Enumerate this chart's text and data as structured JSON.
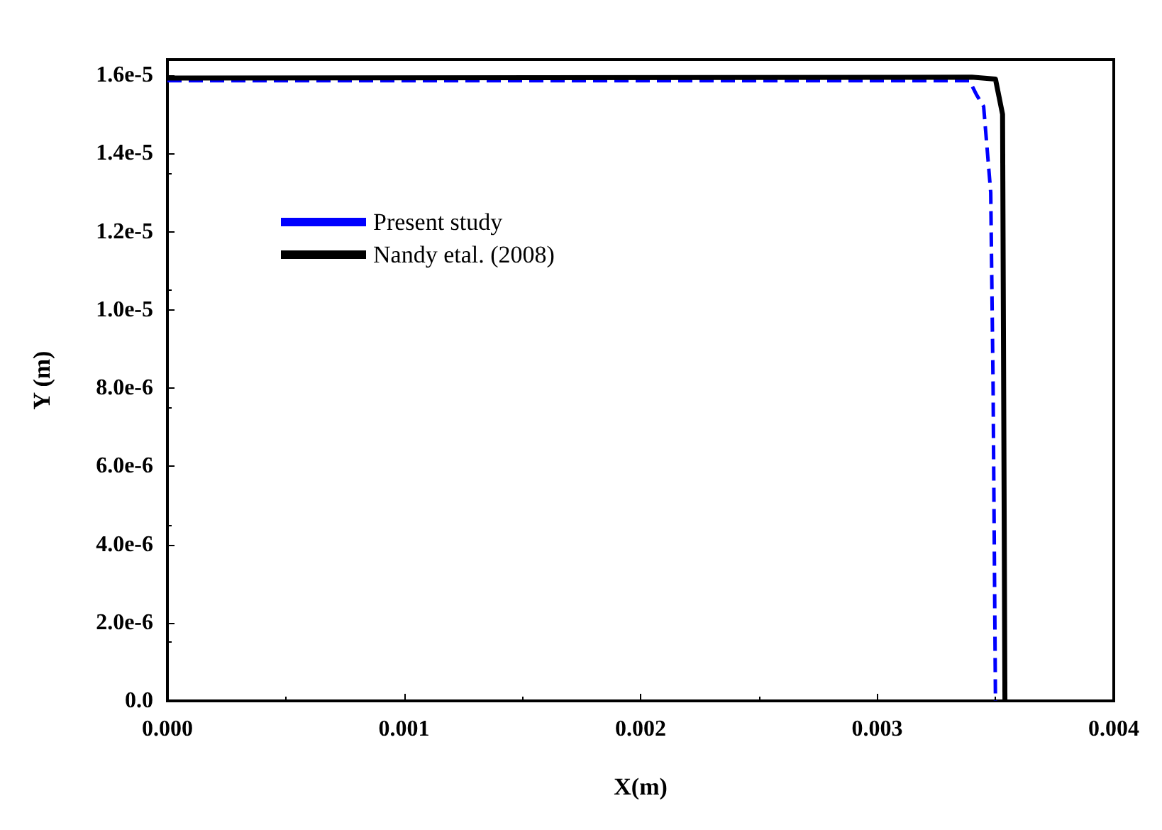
{
  "chart_data": {
    "type": "line",
    "xlabel": "X(m)",
    "ylabel": "Y (m)",
    "xlim": [
      0,
      0.004
    ],
    "xticks": [
      {
        "value": 0,
        "label": "0.000"
      },
      {
        "value": 0.001,
        "label": "0.001"
      },
      {
        "value": 0.002,
        "label": "0.002"
      },
      {
        "value": 0.003,
        "label": "0.003"
      },
      {
        "value": 0.004,
        "label": "0.004"
      }
    ],
    "ylim": [
      0,
      1.64e-05
    ],
    "yticks": [
      {
        "value": 0,
        "label": "0.0"
      },
      {
        "value": 2e-06,
        "label": "2.0e-6"
      },
      {
        "value": 4e-06,
        "label": "4.0e-6"
      },
      {
        "value": 6e-06,
        "label": "6.0e-6"
      },
      {
        "value": 8e-06,
        "label": "8.0e-6"
      },
      {
        "value": 1e-05,
        "label": "1.0e-5"
      },
      {
        "value": 1.2e-05,
        "label": "1.2e-5"
      },
      {
        "value": 1.4e-05,
        "label": "1.4e-5"
      },
      {
        "value": 1.6e-05,
        "label": "1.6e-5"
      }
    ],
    "grid": false,
    "legend": "top left",
    "marker": "none",
    "series": [
      {
        "name": "Present study",
        "color": "#0000ff",
        "line_style": "dashed",
        "x": [
          0,
          0.00339,
          0.00342,
          0.00345,
          0.00348,
          0.00349,
          0.0035
        ],
        "values": [
          1.586e-05,
          1.586e-05,
          1.55e-05,
          1.52e-05,
          1.3e-05,
          8e-06,
          0
        ]
      },
      {
        "name": "Nandy etal. (2008)",
        "color": "#000000",
        "line_style": "solid",
        "x": [
          0,
          0.0034,
          0.0035,
          0.00353,
          0.00354
        ],
        "values": [
          1.593e-05,
          1.595e-05,
          1.59e-05,
          1.5e-05,
          0
        ]
      }
    ]
  }
}
